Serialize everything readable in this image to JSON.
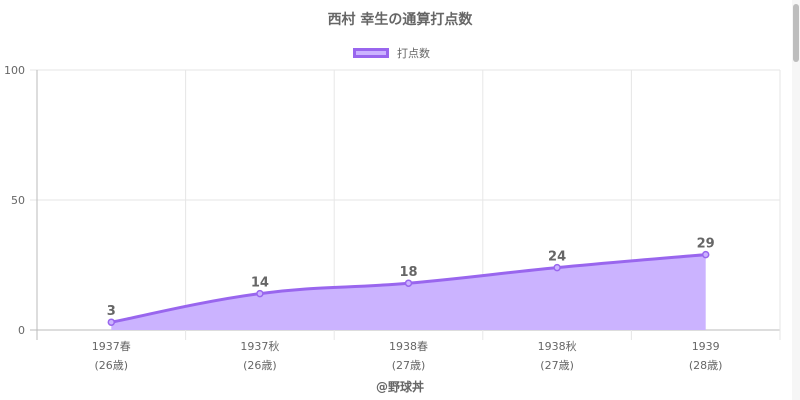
{
  "chart_data": {
    "type": "area",
    "title": "西村 幸生の通算打点数",
    "legend": "打点数",
    "legend_position": "top-center",
    "categories": [
      [
        "1937春",
        "(26歳)"
      ],
      [
        "1937秋",
        "(26歳)"
      ],
      [
        "1938春",
        "(27歳)"
      ],
      [
        "1938秋",
        "(27歳)"
      ],
      [
        "1939",
        "(28歳)"
      ]
    ],
    "series": [
      {
        "name": "打点数",
        "values": [
          3,
          14,
          18,
          24,
          29
        ]
      }
    ],
    "ylim": [
      0,
      100
    ],
    "yticks": [
      0,
      50,
      100
    ],
    "grid": true,
    "line_color": "#9966ee",
    "fill_color": "#cbb3ff"
  },
  "credit": "@野球丼"
}
